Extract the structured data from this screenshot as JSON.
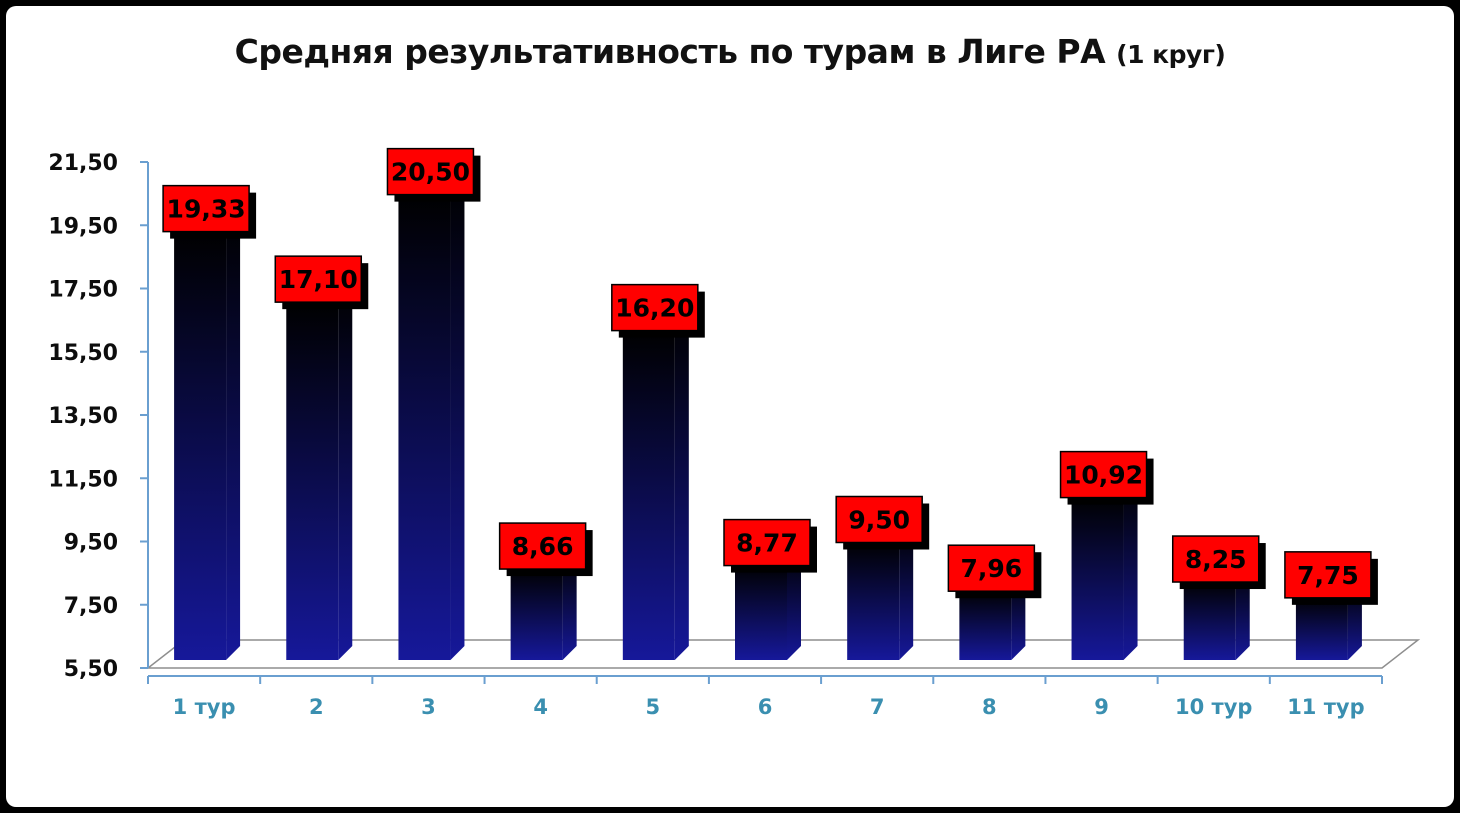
{
  "chart_data": {
    "type": "bar",
    "title": "Средняя результативность по турам в Лиге РА",
    "title_suffix": "(1 круг)",
    "xlabel": "",
    "ylabel": "",
    "categories": [
      "1 тур",
      "2",
      "3",
      "4",
      "5",
      "6",
      "7",
      "8",
      "9",
      "10 тур",
      "11 тур"
    ],
    "series": [
      {
        "values": [
          19.33,
          17.1,
          20.5,
          8.66,
          16.2,
          8.77,
          9.5,
          7.96,
          10.92,
          8.25,
          7.75
        ],
        "labels": [
          "19,33",
          "17,10",
          "20,50",
          "8,66",
          "16,20",
          "8,77",
          "9,50",
          "7,96",
          "10,92",
          "8,25",
          "7,75"
        ]
      }
    ],
    "ylim": [
      5.5,
      21.5
    ],
    "yticks": [
      5.5,
      7.5,
      9.5,
      11.5,
      13.5,
      15.5,
      17.5,
      19.5,
      21.5
    ],
    "ytick_labels": [
      "5,50",
      "7,50",
      "9,50",
      "11,50",
      "13,50",
      "15,50",
      "17,50",
      "19,50",
      "21,50"
    ],
    "grid": false,
    "legend": "none",
    "colors": {
      "bar_bottom": "#16189a",
      "bar_top": "#000000",
      "label_bg": "#ff0000",
      "label_text": "#000000",
      "axis": "#6a9fd0",
      "tick_text": "#0d0d0d",
      "category_text": "#3a8fb0",
      "frame": "#000000"
    }
  }
}
